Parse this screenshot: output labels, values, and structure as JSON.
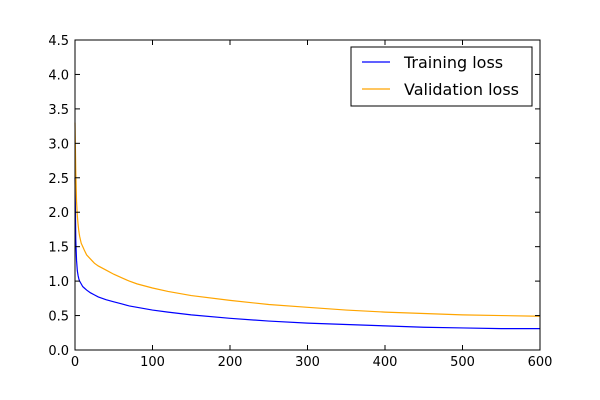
{
  "chart_data": {
    "type": "line",
    "title": "",
    "xlabel": "",
    "ylabel": "",
    "xlim": [
      0,
      600
    ],
    "ylim": [
      0.0,
      4.5
    ],
    "grid": false,
    "legend_position": "top-right",
    "x_ticks": [
      "0",
      "100",
      "200",
      "300",
      "400",
      "500",
      "600"
    ],
    "y_ticks": [
      "0.0",
      "0.5",
      "1.0",
      "1.5",
      "2.0",
      "2.5",
      "3.0",
      "3.5",
      "4.0",
      "4.5"
    ],
    "series": [
      {
        "name": "Training loss",
        "color": "#0000ff",
        "x": [
          0,
          1,
          2,
          3,
          4,
          5,
          6,
          8,
          10,
          12,
          15,
          20,
          25,
          30,
          40,
          50,
          60,
          70,
          80,
          100,
          120,
          150,
          200,
          250,
          300,
          350,
          400,
          450,
          500,
          550,
          600
        ],
        "values": [
          2.5,
          1.6,
          1.3,
          1.15,
          1.08,
          1.03,
          1.0,
          0.96,
          0.92,
          0.9,
          0.87,
          0.83,
          0.8,
          0.77,
          0.73,
          0.7,
          0.67,
          0.64,
          0.62,
          0.58,
          0.55,
          0.51,
          0.46,
          0.42,
          0.39,
          0.37,
          0.35,
          0.33,
          0.32,
          0.31,
          0.31
        ]
      },
      {
        "name": "Validation loss",
        "color": "#ffa500",
        "x": [
          0,
          1,
          2,
          3,
          4,
          5,
          6,
          8,
          10,
          12,
          15,
          20,
          25,
          30,
          40,
          50,
          60,
          70,
          80,
          100,
          120,
          150,
          200,
          250,
          300,
          350,
          400,
          450,
          500,
          550,
          600
        ],
        "values": [
          3.3,
          2.6,
          2.15,
          1.95,
          1.82,
          1.72,
          1.65,
          1.55,
          1.5,
          1.45,
          1.38,
          1.32,
          1.26,
          1.22,
          1.16,
          1.1,
          1.05,
          1.0,
          0.96,
          0.9,
          0.85,
          0.79,
          0.72,
          0.66,
          0.62,
          0.58,
          0.55,
          0.53,
          0.51,
          0.5,
          0.49
        ]
      }
    ]
  }
}
